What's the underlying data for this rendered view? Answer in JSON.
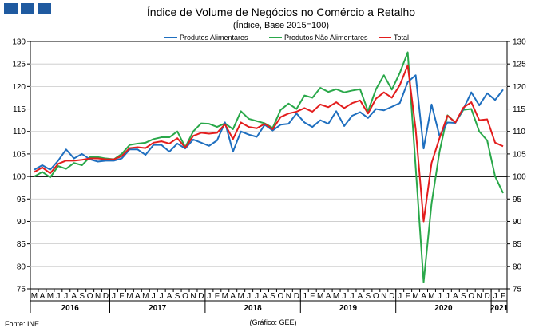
{
  "chart_data": {
    "type": "line",
    "title": "Índice de Volume  de Negócios no Comércio a Retalho",
    "subtitle": "(Índice, Base 2015=100)",
    "source": "Fonte: INE",
    "credit": "(Gráfico: GEE)",
    "ylim": [
      75,
      130
    ],
    "yticks": [
      75,
      80,
      85,
      90,
      95,
      100,
      105,
      110,
      115,
      120,
      125,
      130
    ],
    "reference_line": 100,
    "month_labels": [
      "M",
      "A",
      "M",
      "J",
      "J",
      "A",
      "S",
      "O",
      "N",
      "D",
      "J",
      "F",
      "M",
      "A",
      "M",
      "J",
      "J",
      "A",
      "S",
      "O",
      "N",
      "D",
      "J",
      "F",
      "M",
      "A",
      "M",
      "J",
      "J",
      "A",
      "S",
      "O",
      "N",
      "D",
      "J",
      "F",
      "M",
      "A",
      "M",
      "J",
      "J",
      "A",
      "S",
      "O",
      "N",
      "D",
      "J",
      "F",
      "M",
      "A",
      "M",
      "J",
      "J",
      "A",
      "S",
      "O",
      "N",
      "D",
      "J",
      "F"
    ],
    "years": [
      {
        "label": "2016",
        "start": 0,
        "count": 10
      },
      {
        "label": "2017",
        "start": 10,
        "count": 12
      },
      {
        "label": "2018",
        "start": 22,
        "count": 12
      },
      {
        "label": "2019",
        "start": 34,
        "count": 12
      },
      {
        "label": "2020",
        "start": 46,
        "count": 12
      },
      {
        "label": "2021",
        "start": 58,
        "count": 2
      }
    ],
    "legend": [
      "Produtos Alimentares",
      "Produtos Não Alimentares",
      "Total"
    ],
    "series": [
      {
        "name": "Produtos Alimentares",
        "color": "#1f6fbf",
        "values": [
          101.5,
          102.5,
          101.5,
          103.5,
          106,
          104,
          105,
          103.8,
          103.3,
          103.5,
          103.5,
          104,
          106,
          106,
          104.8,
          107,
          107,
          105.5,
          107.3,
          106.2,
          108.2,
          107.5,
          106.8,
          108,
          112,
          105.5,
          110,
          109.3,
          108.8,
          111.5,
          110.2,
          111.5,
          111.7,
          114,
          112,
          111,
          112.5,
          111.7,
          114.5,
          111.2,
          113.5,
          114.3,
          113,
          115,
          114.7,
          115.5,
          116.3,
          121,
          122.5,
          106.2,
          116,
          109,
          112,
          111.9,
          115,
          118.7,
          115.8,
          118.5,
          117,
          119.3
        ]
      },
      {
        "name": "Produtos Não Alimentares",
        "color": "#2aa84a",
        "values": [
          100,
          101,
          99.8,
          102.3,
          101.7,
          103,
          102.5,
          104.3,
          104.3,
          104,
          103.8,
          105,
          107,
          107.3,
          107.5,
          108.3,
          108.7,
          108.7,
          110,
          106.5,
          110,
          111.8,
          111.7,
          111,
          111.8,
          110.5,
          114.5,
          112.8,
          112.3,
          111.8,
          110.8,
          114.8,
          116.2,
          115,
          118,
          117.5,
          119.7,
          118.8,
          119.4,
          118.7,
          119.1,
          119.4,
          114.5,
          119.4,
          122.5,
          119.3,
          123,
          127.6,
          102,
          76.5,
          94,
          105.5,
          113.6,
          112,
          114.8,
          115,
          110,
          108,
          100,
          96.3
        ]
      },
      {
        "name": "Total",
        "color": "#e31d1d",
        "values": [
          101,
          102,
          100.7,
          102.8,
          103.5,
          103.5,
          103.7,
          104,
          104,
          103.8,
          103.8,
          104.5,
          106.3,
          106.5,
          106.3,
          107.5,
          107.8,
          107.3,
          108.5,
          106.4,
          109,
          109.7,
          109.5,
          109.7,
          111.6,
          108.3,
          112,
          111,
          110.7,
          111.7,
          110.5,
          113.2,
          114,
          114.4,
          115.2,
          114.4,
          116,
          115.4,
          116.5,
          115.2,
          116.3,
          116.9,
          114,
          117.3,
          118.7,
          117.5,
          120.3,
          124.7,
          110.5,
          90,
          103,
          108.5,
          113.5,
          112,
          115.3,
          116.5,
          112.5,
          112.7,
          107.5,
          106.7
        ]
      }
    ]
  }
}
